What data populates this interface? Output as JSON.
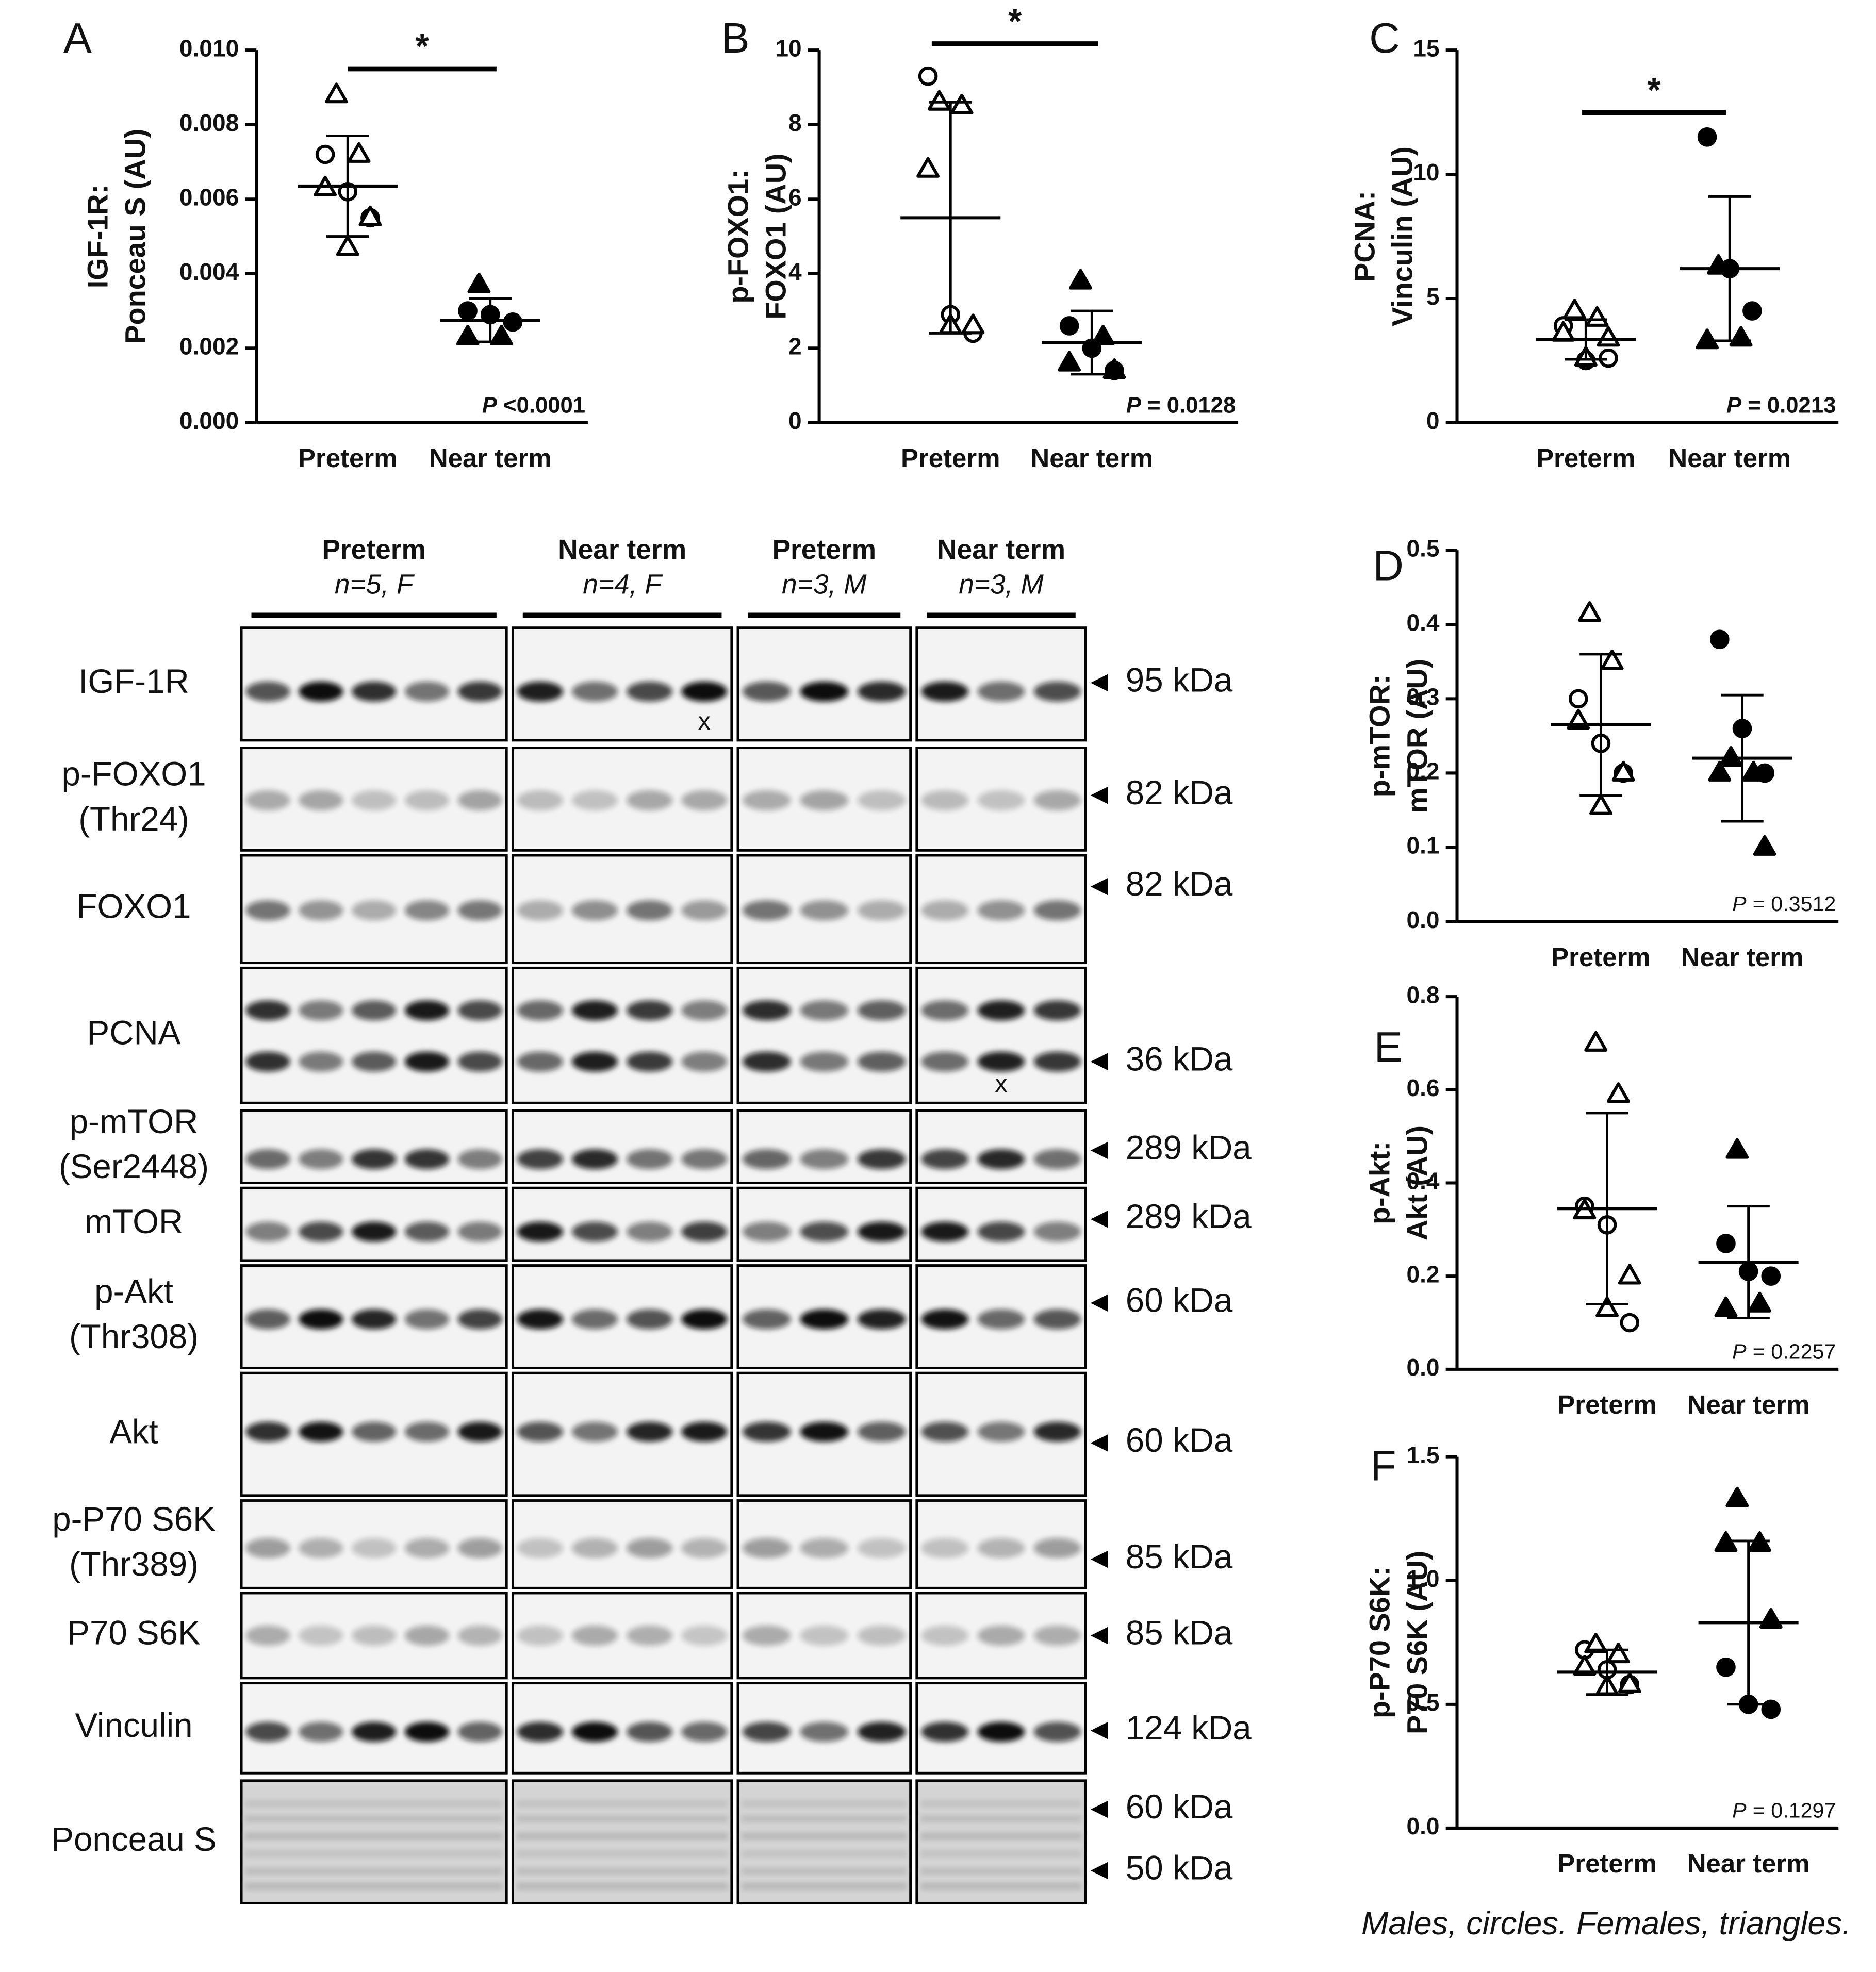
{
  "chart_data": [
    {
      "type": "dot",
      "panel": "A",
      "y_label": [
        "IGF-1R:",
        "Ponceau S (AU)"
      ],
      "categories": [
        "Preterm",
        "Near term"
      ],
      "filled": [
        false,
        true
      ],
      "color": "#000000",
      "series": [
        {
          "marker": "circle",
          "values": [
            [
              0.0072,
              0.0062,
              0.0055
            ],
            [
              0.003,
              0.0029,
              0.0027
            ]
          ]
        },
        {
          "marker": "triangle",
          "values": [
            [
              0.0088,
              0.0072,
              0.0063,
              0.0055,
              0.0047
            ],
            [
              0.0037,
              0.0023,
              0.0023
            ]
          ]
        }
      ],
      "mean": [
        0.00635,
        0.00275
      ],
      "sd": [
        0.00135,
        0.00058
      ],
      "ylim": [
        0,
        0.01
      ],
      "yticks": [
        {
          "value": 0,
          "label": "0.000"
        },
        {
          "value": 0.002,
          "label": "0.002"
        },
        {
          "value": 0.004,
          "label": "0.004"
        },
        {
          "value": 0.006,
          "label": "0.006"
        },
        {
          "value": 0.008,
          "label": "0.008"
        },
        {
          "value": 0.01,
          "label": "0.010"
        }
      ],
      "significance": "*",
      "p_label": {
        "symbol": "P",
        "text": "<0.0001"
      },
      "p_bold": true
    },
    {
      "type": "dot",
      "panel": "B",
      "y_label": [
        "p-FOXO1:",
        "FOXO1 (AU)"
      ],
      "categories": [
        "Preterm",
        "Near term"
      ],
      "filled": [
        false,
        true
      ],
      "color": "#000000",
      "series": [
        {
          "marker": "circle",
          "values": [
            [
              9.3,
              2.9,
              2.4
            ],
            [
              2.6,
              2.0,
              1.4
            ]
          ]
        },
        {
          "marker": "triangle",
          "values": [
            [
              8.6,
              8.5,
              6.8,
              2.6,
              2.6
            ],
            [
              3.8,
              2.3,
              1.6,
              1.4
            ]
          ]
        }
      ],
      "mean": [
        5.5,
        2.15
      ],
      "sd": [
        3.1,
        0.85
      ],
      "ylim": [
        0,
        10
      ],
      "yticks": [
        0,
        2,
        4,
        6,
        8,
        10
      ],
      "significance": "*",
      "p_label": {
        "symbol": "P",
        "text": "= 0.0128"
      },
      "p_bold": true
    },
    {
      "type": "dot",
      "panel": "C",
      "y_label": [
        "PCNA:",
        "Vinculin (AU)"
      ],
      "categories": [
        "Preterm",
        "Near term"
      ],
      "filled": [
        false,
        true
      ],
      "color": "#000000",
      "series": [
        {
          "marker": "circle",
          "values": [
            [
              3.9,
              2.5,
              2.6
            ],
            [
              11.5,
              6.2,
              4.5
            ]
          ]
        },
        {
          "marker": "triangle",
          "values": [
            [
              4.5,
              4.2,
              3.6,
              3.4,
              2.6
            ],
            [
              6.3,
              3.4,
              3.3
            ]
          ]
        }
      ],
      "mean": [
        3.35,
        6.2
      ],
      "sd": [
        0.8,
        2.9
      ],
      "ylim": [
        0,
        15
      ],
      "yticks": [
        0,
        5,
        10,
        15
      ],
      "significance": "*",
      "p_label": {
        "symbol": "P",
        "text": "= 0.0213"
      },
      "p_bold": true
    },
    {
      "type": "dot",
      "panel": "D",
      "y_label": [
        "p-mTOR:",
        "mTOR (AU)"
      ],
      "categories": [
        "Preterm",
        "Near term"
      ],
      "filled": [
        false,
        true
      ],
      "color": "#000000",
      "series": [
        {
          "marker": "circle",
          "values": [
            [
              0.3,
              0.24,
              0.2
            ],
            [
              0.38,
              0.26,
              0.2
            ]
          ]
        },
        {
          "marker": "triangle",
          "values": [
            [
              0.415,
              0.35,
              0.27,
              0.2,
              0.155
            ],
            [
              0.22,
              0.2,
              0.2,
              0.1
            ]
          ]
        }
      ],
      "mean": [
        0.265,
        0.22
      ],
      "sd": [
        0.095,
        0.085
      ],
      "ylim": [
        0,
        0.5
      ],
      "yticks": [
        {
          "value": 0,
          "label": "0.0"
        },
        0.1,
        0.2,
        0.3,
        0.4,
        0.5
      ],
      "p_label": {
        "symbol": "P",
        "text": "= 0.3512"
      },
      "p_bold": false
    },
    {
      "type": "dot",
      "panel": "E",
      "y_label": [
        "p-Akt:",
        "Akt (AU)"
      ],
      "categories": [
        "Preterm",
        "Near term"
      ],
      "filled": [
        false,
        true
      ],
      "color": "#000000",
      "series": [
        {
          "marker": "circle",
          "values": [
            [
              0.35,
              0.31,
              0.1
            ],
            [
              0.27,
              0.21,
              0.2
            ]
          ]
        },
        {
          "marker": "triangle",
          "values": [
            [
              0.7,
              0.59,
              0.34,
              0.2,
              0.13
            ],
            [
              0.47,
              0.14,
              0.13
            ]
          ]
        }
      ],
      "mean": [
        0.345,
        0.23
      ],
      "sd": [
        0.205,
        0.12
      ],
      "ylim": [
        0,
        0.8
      ],
      "yticks": [
        {
          "value": 0,
          "label": "0.0"
        },
        0.2,
        0.4,
        0.6,
        0.8
      ],
      "p_label": {
        "symbol": "P",
        "text": "= 0.2257"
      },
      "p_bold": false
    },
    {
      "type": "dot",
      "panel": "F",
      "y_label": [
        "p-P70 S6K:",
        "P70 S6K (AU)"
      ],
      "categories": [
        "Preterm",
        "Near term"
      ],
      "filled": [
        false,
        true
      ],
      "color": "#000000",
      "series": [
        {
          "marker": "circle",
          "values": [
            [
              0.72,
              0.64,
              0.58
            ],
            [
              0.65,
              0.5,
              0.48
            ]
          ]
        },
        {
          "marker": "triangle",
          "values": [
            [
              0.74,
              0.7,
              0.65,
              0.58,
              0.57
            ],
            [
              1.33,
              1.15,
              1.15,
              0.84
            ]
          ]
        }
      ],
      "mean": [
        0.63,
        0.83
      ],
      "sd": [
        0.09,
        0.33
      ],
      "ylim": [
        0,
        1.5
      ],
      "yticks": [
        {
          "value": 0,
          "label": "0.0"
        },
        0.5,
        {
          "value": 1,
          "label": "1.0"
        },
        1.5
      ],
      "p_label": {
        "symbol": "P",
        "text": "= 0.1297"
      },
      "p_bold": false
    }
  ],
  "blot": {
    "groups": [
      {
        "label": "Preterm",
        "sub": "n=5, F",
        "lanes": 5
      },
      {
        "label": "Near term",
        "sub": "n=4, F",
        "lanes": 4
      },
      {
        "label": "Preterm",
        "sub": "n=3, M",
        "lanes": 3
      },
      {
        "label": "Near term",
        "sub": "n=3, M",
        "lanes": 3
      }
    ],
    "rows": [
      {
        "label": [
          "IGF-1R"
        ],
        "markers": [
          "95 kDa"
        ],
        "lane_note": {
          "group": 1,
          "lane": 3,
          "text": "x"
        }
      },
      {
        "label": [
          "p-FOXO1",
          "(Thr24)"
        ],
        "markers": [
          "82 kDa"
        ]
      },
      {
        "label": [
          "FOXO1"
        ],
        "markers": [
          "82 kDa"
        ]
      },
      {
        "label": [
          "PCNA"
        ],
        "markers": [
          "36 kDa"
        ],
        "lane_note": {
          "group": 3,
          "lane": 1,
          "text": "x"
        }
      },
      {
        "label": [
          "p-mTOR",
          "(Ser2448)"
        ],
        "markers": [
          "289 kDa"
        ]
      },
      {
        "label": [
          "mTOR"
        ],
        "markers": [
          "289 kDa"
        ]
      },
      {
        "label": [
          "p-Akt",
          "(Thr308)"
        ],
        "markers": [
          "60 kDa"
        ]
      },
      {
        "label": [
          "Akt"
        ],
        "markers": [
          "60 kDa"
        ]
      },
      {
        "label": [
          "p-P70 S6K",
          "(Thr389)"
        ],
        "markers": [
          "85 kDa"
        ]
      },
      {
        "label": [
          "P70 S6K"
        ],
        "markers": [
          "85 kDa"
        ]
      },
      {
        "label": [
          "Vinculin"
        ],
        "markers": [
          "124 kDa"
        ]
      },
      {
        "label": [
          "Ponceau S"
        ],
        "markers": [
          "60 kDa",
          "50 kDa"
        ]
      }
    ]
  },
  "footnote": "Males, circles. Females, triangles."
}
